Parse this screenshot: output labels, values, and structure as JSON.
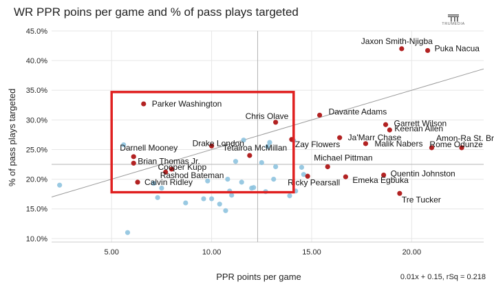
{
  "header": {
    "title": "WR PPR poins per game and % of pass plays targeted",
    "logo_text": "TRUMEDIA"
  },
  "footer": {
    "regression_text": "0.01x + 0.15, rSq = 0.218"
  },
  "colors": {
    "labeled_point": "#b22222",
    "unlabeled_point": "#8ec3df",
    "highlight_box": "#e02020",
    "grid": "#e6e6e6",
    "trend": "#999999",
    "median": "#b3b3b3"
  },
  "chart_data": {
    "type": "scatter",
    "title": "WR PPR poins per game and % of pass plays targeted",
    "xlabel": "PPR points per game",
    "ylabel": "% of pass plays targeted",
    "xlim": [
      2.0,
      23.6
    ],
    "ylim": [
      0.094,
      0.45
    ],
    "x_ticks": [
      5,
      10,
      15,
      20
    ],
    "x_tick_labels": [
      "5.00",
      "10.00",
      "15.00",
      "20.00"
    ],
    "y_ticks": [
      0.1,
      0.15,
      0.2,
      0.25,
      0.3,
      0.35,
      0.4,
      0.45
    ],
    "y_tick_labels": [
      "10.0%",
      "15.0%",
      "20.0%",
      "25.0%",
      "30.0%",
      "35.0%",
      "40.0%",
      "45.0%"
    ],
    "median_x": 12.3,
    "median_y": 0.225,
    "trendline": {
      "slope": 0.01,
      "intercept": 0.15,
      "rsq": 0.218
    },
    "highlight_region": {
      "x": [
        5.0,
        14.1
      ],
      "y": [
        0.178,
        0.347
      ]
    },
    "labeled_points": [
      {
        "name": "Jaxon Smith-Njigba",
        "x": 19.5,
        "y": 0.42
      },
      {
        "name": "Puka Nacua",
        "x": 20.8,
        "y": 0.417
      },
      {
        "name": "Parker Washington",
        "x": 6.6,
        "y": 0.327
      },
      {
        "name": "Chris Olave",
        "x": 13.2,
        "y": 0.296
      },
      {
        "name": "Davante Adams",
        "x": 15.4,
        "y": 0.308
      },
      {
        "name": "Garrett Wilson",
        "x": 18.7,
        "y": 0.292
      },
      {
        "name": "Keenan Allen",
        "x": 18.9,
        "y": 0.283
      },
      {
        "name": "Ja'Marr Chase",
        "x": 16.4,
        "y": 0.27
      },
      {
        "name": "Zay Flowers",
        "x": 14.0,
        "y": 0.267
      },
      {
        "name": "Malik Nabers",
        "x": 17.7,
        "y": 0.26
      },
      {
        "name": "Amon-Ra St. Brown",
        "x": 22.5,
        "y": 0.253
      },
      {
        "name": "Drake London",
        "x": 10.0,
        "y": 0.256
      },
      {
        "name": "Tetairoa McMillan",
        "x": 11.9,
        "y": 0.24
      },
      {
        "name": "Darnell Mooney",
        "x": 6.1,
        "y": 0.238
      },
      {
        "name": "Brian Thomas Jr.",
        "x": 6.1,
        "y": 0.227
      },
      {
        "name": "Rome Odunze",
        "x": 21.0,
        "y": 0.253
      },
      {
        "name": "Michael Pittman",
        "x": 15.8,
        "y": 0.221
      },
      {
        "name": "Cooper Kupp",
        "x": 8.0,
        "y": 0.217
      },
      {
        "name": "Rashod Bateman",
        "x": 7.7,
        "y": 0.212
      },
      {
        "name": "Quentin Johnston",
        "x": 18.6,
        "y": 0.207
      },
      {
        "name": "Ricky Pearsall",
        "x": 14.8,
        "y": 0.205
      },
      {
        "name": "Emeka Egbuka",
        "x": 16.7,
        "y": 0.204
      },
      {
        "name": "Calvin Ridley",
        "x": 6.3,
        "y": 0.195
      },
      {
        "name": "Tre Tucker",
        "x": 19.4,
        "y": 0.176
      }
    ],
    "unlabeled_points": [
      {
        "x": 2.4,
        "y": 0.19
      },
      {
        "x": 5.6,
        "y": 0.258
      },
      {
        "x": 5.8,
        "y": 0.11
      },
      {
        "x": 7.1,
        "y": 0.193
      },
      {
        "x": 7.3,
        "y": 0.169
      },
      {
        "x": 7.5,
        "y": 0.185
      },
      {
        "x": 8.7,
        "y": 0.16
      },
      {
        "x": 9.6,
        "y": 0.167
      },
      {
        "x": 9.8,
        "y": 0.197
      },
      {
        "x": 10.0,
        "y": 0.167
      },
      {
        "x": 10.4,
        "y": 0.158
      },
      {
        "x": 10.7,
        "y": 0.147
      },
      {
        "x": 10.9,
        "y": 0.18
      },
      {
        "x": 11.0,
        "y": 0.173
      },
      {
        "x": 10.8,
        "y": 0.2
      },
      {
        "x": 11.2,
        "y": 0.23
      },
      {
        "x": 11.5,
        "y": 0.195
      },
      {
        "x": 11.6,
        "y": 0.266
      },
      {
        "x": 12.0,
        "y": 0.185
      },
      {
        "x": 12.1,
        "y": 0.186
      },
      {
        "x": 12.5,
        "y": 0.228
      },
      {
        "x": 12.8,
        "y": 0.255
      },
      {
        "x": 12.7,
        "y": 0.179
      },
      {
        "x": 13.2,
        "y": 0.221
      },
      {
        "x": 13.1,
        "y": 0.2
      },
      {
        "x": 14.1,
        "y": 0.265
      },
      {
        "x": 14.2,
        "y": 0.18
      },
      {
        "x": 14.5,
        "y": 0.22
      },
      {
        "x": 14.6,
        "y": 0.208
      },
      {
        "x": 13.9,
        "y": 0.172
      },
      {
        "x": 12.9,
        "y": 0.262
      }
    ]
  }
}
